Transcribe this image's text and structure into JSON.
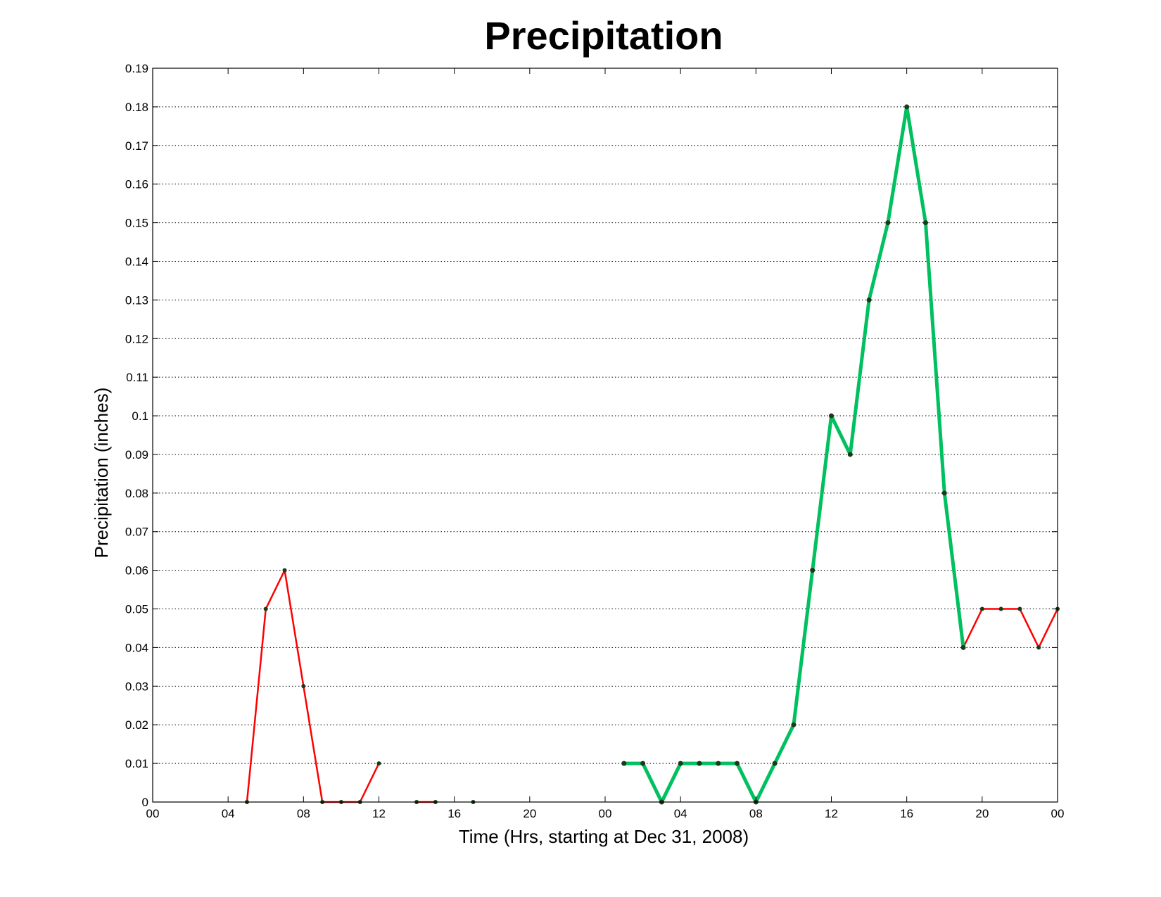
{
  "chart_data": {
    "type": "line",
    "title": "Precipitation",
    "xlabel": "Time (Hrs, starting at Dec 31, 2008)",
    "ylabel": "Precipitation (inches)",
    "x_unit": "hours",
    "xlim": [
      0,
      48
    ],
    "ylim": [
      0,
      0.19
    ],
    "x_ticks": [
      0,
      4,
      8,
      12,
      16,
      20,
      24,
      28,
      32,
      36,
      40,
      44,
      48
    ],
    "x_tick_labels": [
      "00",
      "04",
      "08",
      "12",
      "16",
      "20",
      "00",
      "04",
      "08",
      "12",
      "16",
      "20",
      "00"
    ],
    "y_ticks": [
      0,
      0.01,
      0.02,
      0.03,
      0.04,
      0.05,
      0.06,
      0.07,
      0.08,
      0.09,
      0.1,
      0.11,
      0.12,
      0.13,
      0.14,
      0.15,
      0.16,
      0.17,
      0.18,
      0.19
    ],
    "y_tick_labels": [
      "0",
      "0.01",
      "0.02",
      "0.03",
      "0.04",
      "0.05",
      "0.06",
      "0.07",
      "0.08",
      "0.09",
      "0.1",
      "0.11",
      "0.12",
      "0.13",
      "0.14",
      "0.15",
      "0.16",
      "0.17",
      "0.18",
      "0.19"
    ],
    "grid": "horizontal-dotted",
    "colors": {
      "series_a": "#ff0000",
      "series_b": "#00c060",
      "marker": "#1a3a1a",
      "axis": "#000000",
      "grid": "#000000"
    },
    "series": [
      {
        "style": "thin",
        "color": "#ff0000",
        "segments": [
          [
            [
              5,
              0
            ],
            [
              6,
              0.05
            ],
            [
              7,
              0.06
            ],
            [
              8,
              0.03
            ],
            [
              9,
              0
            ],
            [
              10,
              0
            ],
            [
              11,
              0
            ],
            [
              12,
              0.01
            ]
          ],
          [
            [
              14,
              0
            ],
            [
              15,
              0
            ]
          ],
          [
            [
              17,
              0
            ]
          ],
          [
            [
              43,
              0.04
            ],
            [
              44,
              0.05
            ],
            [
              45,
              0.05
            ],
            [
              46,
              0.05
            ],
            [
              47,
              0.04
            ],
            [
              48,
              0.05
            ]
          ]
        ]
      },
      {
        "style": "thick",
        "color": "#00c060",
        "segments": [
          [
            [
              25,
              0.01
            ],
            [
              26,
              0.01
            ],
            [
              27,
              0
            ],
            [
              28,
              0.01
            ],
            [
              29,
              0.01
            ],
            [
              30,
              0.01
            ],
            [
              31,
              0.01
            ],
            [
              32,
              0
            ],
            [
              33,
              0.01
            ],
            [
              34,
              0.02
            ],
            [
              35,
              0.06
            ],
            [
              36,
              0.1
            ],
            [
              37,
              0.09
            ],
            [
              38,
              0.13
            ],
            [
              39,
              0.15
            ],
            [
              40,
              0.18
            ],
            [
              41,
              0.15
            ],
            [
              42,
              0.08
            ],
            [
              43,
              0.04
            ]
          ]
        ]
      }
    ]
  }
}
